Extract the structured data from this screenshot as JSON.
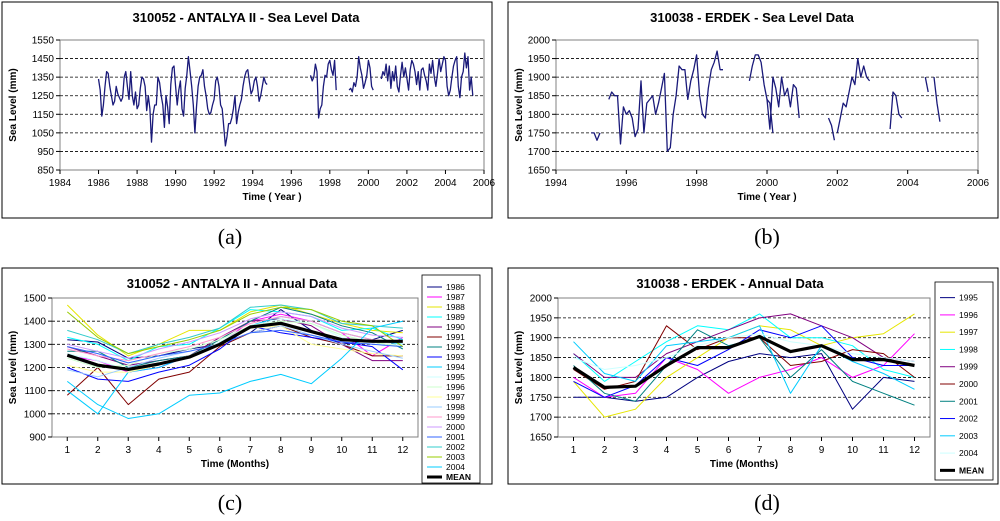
{
  "chart_data": [
    {
      "panel": "a",
      "caption": "(a)",
      "type": "line",
      "title": "310052 - ANTALYA II - Sea Level Data",
      "xlabel": "Time ( Year )",
      "ylabel": "Sea Level (mm)",
      "xlim": [
        1984,
        2006
      ],
      "ylim": [
        850,
        1550
      ],
      "xticks": [
        1984,
        1986,
        1988,
        1990,
        1992,
        1994,
        1996,
        1998,
        2000,
        2002,
        2004,
        2006
      ],
      "yticks": [
        850,
        950,
        1050,
        1150,
        1250,
        1350,
        1450,
        1550
      ],
      "grid": "horizontal dashed",
      "color": "#1a1a7a",
      "segments": [
        {
          "start": 1986.0,
          "step": 0.0833,
          "values": [
            1340,
            1280,
            1140,
            1200,
            1300,
            1380,
            1370,
            1300,
            1250,
            1200,
            1220,
            1300,
            1260,
            1240,
            1220,
            1240,
            1350,
            1380,
            1300,
            1230,
            1380,
            1250,
            1200,
            1270,
            1180,
            1200,
            1290,
            1350,
            1340,
            1300,
            1170,
            1250,
            1180,
            1000,
            1150,
            1200,
            1200,
            1350,
            1320,
            1250,
            1200,
            1080,
            1250,
            1190,
            1100,
            1310,
            1400,
            1410,
            1300,
            1200,
            1280,
            1330,
            1180,
            1140,
            1290,
            1360,
            1460,
            1380,
            1300,
            1200,
            1050,
            1190,
            1300,
            1350,
            1360,
            1390,
            1300,
            1250,
            1180,
            1150,
            1160,
            1200,
            1230,
            1330,
            1350,
            1300,
            1200,
            1180,
            1080,
            980,
            1030,
            1100,
            1100,
            1130,
            1180,
            1250,
            1100,
            1160,
            1200,
            1230,
            1300,
            1350,
            1380,
            1390,
            1320,
            1260,
            1280,
            1330,
            1350,
            1300,
            1220,
            1250,
            1300,
            1350,
            1320,
            1310
          ]
        },
        {
          "start": 1997.0,
          "step": 0.0833,
          "values": [
            1360,
            1330,
            1350,
            1420,
            1380,
            1130,
            1180,
            1200,
            1300,
            1360,
            1350,
            1420,
            1440,
            1390,
            1360,
            1440,
            1280
          ]
        },
        {
          "start": 1999.0,
          "step": 0.0833,
          "values": [
            1280,
            1290,
            1270,
            1320,
            1300,
            1350,
            1460,
            1400,
            1360,
            1290,
            1320,
            1360,
            1440,
            1400,
            1300,
            1280
          ]
        },
        {
          "start": 2000.67,
          "step": 0.0833,
          "values": [
            1340,
            1380,
            1360,
            1420,
            1330,
            1410,
            1290,
            1380,
            1330,
            1410,
            1300,
            1270,
            1360,
            1430,
            1350,
            1400,
            1340,
            1280,
            1390,
            1440,
            1420,
            1380,
            1310,
            1380,
            1280,
            1390,
            1400,
            1360,
            1330,
            1280,
            1420,
            1370,
            1440,
            1350,
            1300,
            1370,
            1450,
            1380,
            1420,
            1460,
            1440,
            1300,
            1250,
            1280,
            1350,
            1410,
            1440,
            1460,
            1300,
            1240,
            1350,
            1380,
            1480,
            1400,
            1460,
            1280,
            1350,
            1250
          ]
        }
      ]
    },
    {
      "panel": "b",
      "caption": "(b)",
      "type": "line",
      "title": "310038 - ERDEK - Sea Level Data",
      "xlabel": "Time ( Year )",
      "ylabel": "Sea Level (mm)",
      "xlim": [
        1994,
        2006
      ],
      "ylim": [
        1650,
        2000
      ],
      "xticks": [
        1994,
        1996,
        1998,
        2000,
        2002,
        2004,
        2006
      ],
      "yticks": [
        1650,
        1700,
        1750,
        1800,
        1850,
        1900,
        1950,
        2000
      ],
      "grid": "horizontal dashed",
      "color": "#1a1a7a",
      "segments": [
        {
          "start": 1995.0,
          "step": 0.0833,
          "values": [
            1750,
            1750,
            1730,
            1750
          ]
        },
        {
          "start": 1995.5,
          "step": 0.0833,
          "values": [
            1840,
            1860,
            1850,
            1850,
            1720,
            1820,
            1800,
            1810,
            1790,
            1740,
            1760,
            1890,
            1750,
            1830,
            1840,
            1850,
            1800,
            1830,
            1870,
            1910,
            1700,
            1710,
            1800,
            1850,
            1930,
            1920,
            1920,
            1840,
            1890,
            1920,
            1960,
            1850,
            1800,
            1790,
            1870,
            1920,
            1940,
            1970,
            1920,
            1920
          ]
        },
        {
          "start": 1999.5,
          "step": 0.0833,
          "values": [
            1890,
            1930,
            1960,
            1960,
            1940,
            1880,
            1840,
            1830,
            1750
          ]
        },
        {
          "start": 2000.0,
          "step": 0.0833,
          "values": [
            1840,
            1760,
            1900,
            1870,
            1820,
            1900,
            1850,
            1870,
            1820,
            1880,
            1870,
            1790
          ]
        },
        {
          "start": 2001.75,
          "step": 0.0833,
          "values": [
            1790,
            1770,
            1730
          ]
        },
        {
          "start": 2002.0,
          "step": 0.0833,
          "values": [
            1750,
            1790,
            1830,
            1820,
            1860,
            1900,
            1880,
            1950,
            1900,
            1930,
            1900,
            1890
          ]
        },
        {
          "start": 2003.5,
          "step": 0.0833,
          "values": [
            1760,
            1860,
            1850,
            1800,
            1790
          ]
        },
        {
          "start": 2004.5,
          "step": 0.0833,
          "values": [
            1900,
            1860
          ]
        },
        {
          "start": 2004.75,
          "step": 0.0833,
          "values": [
            1900,
            1830,
            1780
          ]
        }
      ]
    },
    {
      "panel": "c",
      "caption": "(c)",
      "type": "line",
      "title": "310052 - ANTALYA II - Annual Data",
      "xlabel": "Time (Months)",
      "ylabel": "Sea Level (mm)",
      "xlim": [
        0.5,
        12.5
      ],
      "ylim": [
        900,
        1500
      ],
      "xticks": [
        1,
        2,
        3,
        4,
        5,
        6,
        7,
        8,
        9,
        10,
        11,
        12
      ],
      "yticks": [
        900,
        1000,
        1100,
        1200,
        1300,
        1400,
        1500
      ],
      "grid": "horizontal dashed",
      "categories": [
        1,
        2,
        3,
        4,
        5,
        6,
        7,
        8,
        9,
        10,
        11,
        12
      ],
      "series": [
        {
          "name": "1986",
          "color": "#000080",
          "values": [
            1320,
            1310,
            1240,
            1250,
            1280,
            1300,
            1350,
            1450,
            1360,
            1300,
            1320,
            1360
          ]
        },
        {
          "name": "1987",
          "color": "#ff00ff",
          "values": [
            1250,
            1230,
            1180,
            1200,
            1250,
            1300,
            1400,
            1430,
            1400,
            1350,
            1250,
            1330
          ]
        },
        {
          "name": "1988",
          "color": "#e6e600",
          "values": [
            1470,
            1340,
            1250,
            1300,
            1360,
            1360,
            1440,
            1470,
            1430,
            1390,
            1360,
            1350
          ]
        },
        {
          "name": "1989",
          "color": "#00ffff",
          "values": [
            1330,
            1300,
            1230,
            1290,
            1300,
            1370,
            1450,
            1440,
            1420,
            1360,
            1370,
            1320
          ]
        },
        {
          "name": "1990",
          "color": "#800080",
          "values": [
            1290,
            1250,
            1210,
            1230,
            1250,
            1330,
            1400,
            1410,
            1380,
            1300,
            1230,
            1230
          ]
        },
        {
          "name": "1991",
          "color": "#800000",
          "values": [
            1080,
            1200,
            1040,
            1150,
            1180,
            1290,
            1350,
            1380,
            1330,
            1300,
            1250,
            1250
          ]
        },
        {
          "name": "1992",
          "color": "#008080",
          "values": [
            1270,
            1270,
            1200,
            1230,
            1250,
            1320,
            1400,
            1460,
            1430,
            1380,
            1350,
            1280
          ]
        },
        {
          "name": "1993",
          "color": "#0000ff",
          "values": [
            1200,
            1150,
            1140,
            1180,
            1210,
            1280,
            1380,
            1350,
            1330,
            1310,
            1290,
            1190
          ]
        },
        {
          "name": "1994",
          "color": "#00ccff",
          "values": [
            1100,
            1000,
            1180,
            1200,
            1250,
            1300,
            1380,
            1420,
            1400,
            1350,
            1320,
            1300
          ]
        },
        {
          "name": "1995",
          "color": "#ccffff",
          "values": [
            1260,
            1230,
            1190,
            1220,
            1250,
            1310,
            1380,
            1410,
            1390,
            1330,
            1300,
            1300
          ]
        },
        {
          "name": "1996",
          "color": "#ccffcc",
          "values": [
            1240,
            1200,
            1210,
            1260,
            1280,
            1320,
            1380,
            1400,
            1390,
            1340,
            1310,
            1290
          ]
        },
        {
          "name": "1997",
          "color": "#ffff99",
          "values": [
            1210,
            1180,
            1180,
            1210,
            1250,
            1300,
            1370,
            1380,
            1300,
            1280,
            1260,
            1250
          ]
        },
        {
          "name": "1998",
          "color": "#99ccff",
          "values": [
            1190,
            1160,
            1200,
            1240,
            1270,
            1300,
            1350,
            1380,
            1340,
            1300,
            1270,
            1240
          ]
        },
        {
          "name": "1999",
          "color": "#ff99cc",
          "values": [
            1280,
            1250,
            1230,
            1260,
            1290,
            1330,
            1390,
            1420,
            1400,
            1350,
            1320,
            1310
          ]
        },
        {
          "name": "2000",
          "color": "#cc99ff",
          "values": [
            1300,
            1270,
            1240,
            1280,
            1310,
            1350,
            1410,
            1440,
            1420,
            1370,
            1340,
            1330
          ]
        },
        {
          "name": "2001",
          "color": "#3366ff",
          "values": [
            1290,
            1260,
            1220,
            1250,
            1270,
            1300,
            1350,
            1360,
            1340,
            1310,
            1300,
            1290
          ]
        },
        {
          "name": "2002",
          "color": "#33cccc",
          "values": [
            1360,
            1320,
            1260,
            1300,
            1330,
            1370,
            1460,
            1470,
            1450,
            1390,
            1380,
            1370
          ]
        },
        {
          "name": "2003",
          "color": "#99cc00",
          "values": [
            1440,
            1330,
            1260,
            1290,
            1320,
            1360,
            1430,
            1460,
            1450,
            1400,
            1380,
            1290
          ]
        },
        {
          "name": "2004",
          "color": "#00ccff",
          "values": [
            1140,
            1040,
            980,
            1000,
            1080,
            1090,
            1140,
            1170,
            1130,
            1240,
            1370,
            1400
          ]
        },
        {
          "name": "MEAN",
          "color": "#000000",
          "bold": true,
          "values": [
            1253,
            1210,
            1192,
            1215,
            1245,
            1300,
            1375,
            1391,
            1355,
            1320,
            1313,
            1313
          ]
        }
      ]
    },
    {
      "panel": "d",
      "caption": "(d)",
      "type": "line",
      "title": "310038 - ERDEK - Annual Data",
      "xlabel": "Time (Months)",
      "ylabel": "Sea Level (mm)",
      "xlim": [
        0.5,
        12.5
      ],
      "ylim": [
        1650,
        2000
      ],
      "xticks": [
        1,
        2,
        3,
        4,
        5,
        6,
        7,
        8,
        9,
        10,
        11,
        12
      ],
      "yticks": [
        1650,
        1700,
        1750,
        1800,
        1850,
        1900,
        1950,
        2000
      ],
      "grid": "horizontal dashed",
      "categories": [
        1,
        2,
        3,
        4,
        5,
        6,
        7,
        8,
        9,
        10,
        11,
        12
      ],
      "series": [
        {
          "name": "1995",
          "color": "#000080",
          "values": [
            1750,
            1750,
            1740,
            1750,
            1800,
            1840,
            1860,
            1850,
            1860,
            1720,
            1800,
            1790
          ]
        },
        {
          "name": "1996",
          "color": "#ff00ff",
          "values": [
            1800,
            1750,
            1760,
            1850,
            1820,
            1760,
            1800,
            1820,
            1850,
            1800,
            1830,
            1910
          ]
        },
        {
          "name": "1997",
          "color": "#e6e600",
          "values": [
            1790,
            1700,
            1720,
            1800,
            1850,
            1900,
            1930,
            1920,
            1880,
            1900,
            1910,
            1960
          ]
        },
        {
          "name": "1998",
          "color": "#00ffff",
          "values": [
            1860,
            1790,
            1840,
            1890,
            1930,
            1920,
            1960,
            1900,
            1900,
            1880,
            1820,
            1800
          ]
        },
        {
          "name": "1999",
          "color": "#800080",
          "values": [
            1860,
            1800,
            1800,
            1860,
            1890,
            1920,
            1950,
            1960,
            1930,
            1900,
            1850,
            1840
          ]
        },
        {
          "name": "2000",
          "color": "#800000",
          "values": [
            1820,
            1770,
            1790,
            1930,
            1870,
            1900,
            1900,
            1830,
            1840,
            1870,
            1860,
            1800
          ]
        },
        {
          "name": "2001",
          "color": "#008080",
          "values": [
            1830,
            1760,
            1740,
            1830,
            1920,
            1880,
            1900,
            1800,
            1870,
            1790,
            1760,
            1730
          ]
        },
        {
          "name": "2002",
          "color": "#0000ff",
          "values": [
            1790,
            1750,
            1780,
            1850,
            1830,
            1870,
            1920,
            1900,
            1930,
            1850,
            1830,
            1830
          ]
        },
        {
          "name": "2003",
          "color": "#00ccff",
          "values": [
            1890,
            1810,
            1790,
            1880,
            1890,
            1900,
            1930,
            1760,
            1880,
            1840,
            1810,
            1770
          ]
        },
        {
          "name": "2004",
          "color": "#ccffff",
          "values": [
            1850,
            1820,
            1830,
            1850,
            1880,
            1900,
            1910,
            1890,
            1880,
            1860,
            1850,
            1840
          ]
        },
        {
          "name": "MEAN",
          "color": "#000000",
          "bold": true,
          "values": [
            1825,
            1775,
            1778,
            1830,
            1875,
            1875,
            1903,
            1865,
            1880,
            1845,
            1845,
            1830
          ]
        }
      ]
    }
  ]
}
